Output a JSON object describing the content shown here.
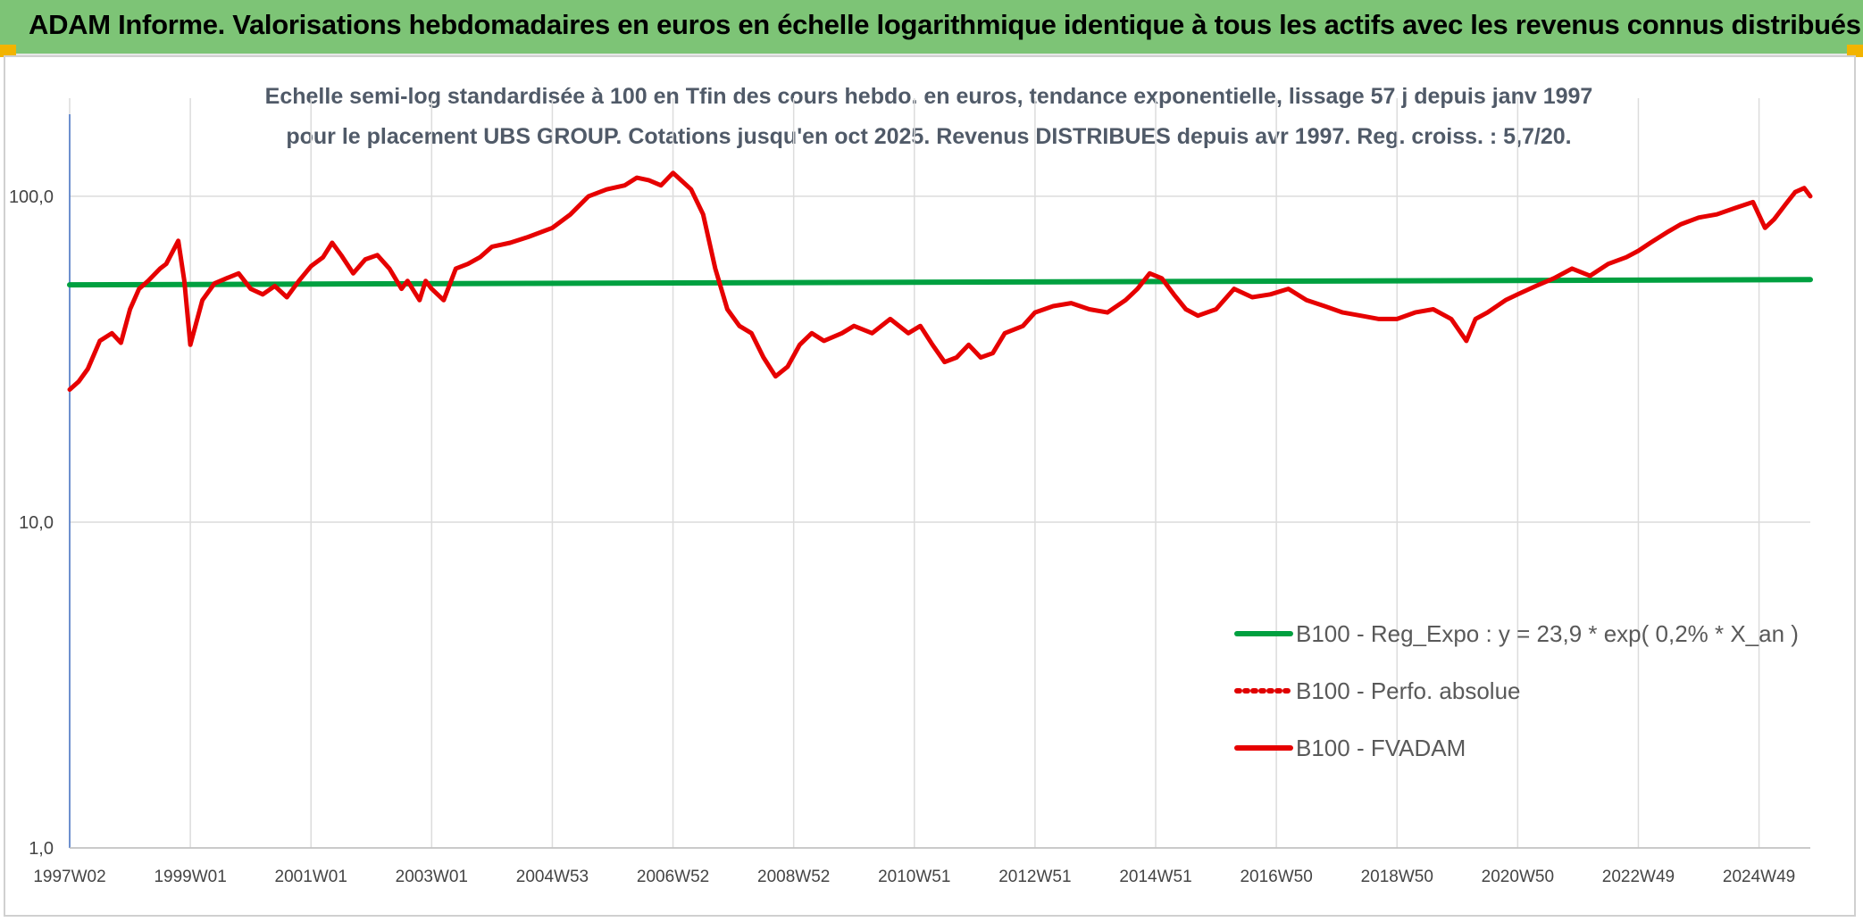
{
  "banner": {
    "title": "ADAM Informe. Valorisations hebdomadaires en euros en échelle logarithmique identique à tous les actifs avec les revenus connus distribués",
    "background_color": "#7dc476",
    "accent_color": "#f2b400"
  },
  "chart_data": {
    "type": "line",
    "title": "Echelle semi-log standardisée à 100 en Tfin des cours hebdo. en euros, tendance exponentielle, lissage 57 j depuis janv 1997 pour le placement UBS GROUP. Cotations jusqu'en oct 2025. Revenus DISTRIBUES depuis avr 1997. Reg. croiss. : 5,7/20.",
    "xlabel": "",
    "ylabel": "",
    "y_scale": "log",
    "ylim": [
      1,
      200
    ],
    "grid": true,
    "legend_position": "bottom-right",
    "y_ticks": [
      {
        "value": 1,
        "label": "1,0"
      },
      {
        "value": 10,
        "label": "10,0"
      },
      {
        "value": 100,
        "label": "100,0"
      }
    ],
    "x_range": [
      1997.0,
      2025.85
    ],
    "x_ticks": [
      {
        "value": 1997.0,
        "label": "1997W02"
      },
      {
        "value": 1999.0,
        "label": "1999W01"
      },
      {
        "value": 2001.0,
        "label": "2001W01"
      },
      {
        "value": 2003.0,
        "label": "2003W01"
      },
      {
        "value": 2005.0,
        "label": "2004W53"
      },
      {
        "value": 2007.0,
        "label": "2006W52"
      },
      {
        "value": 2009.0,
        "label": "2008W52"
      },
      {
        "value": 2011.0,
        "label": "2010W51"
      },
      {
        "value": 2013.0,
        "label": "2012W51"
      },
      {
        "value": 2015.0,
        "label": "2014W51"
      },
      {
        "value": 2017.0,
        "label": "2016W50"
      },
      {
        "value": 2019.0,
        "label": "2018W50"
      },
      {
        "value": 2021.0,
        "label": "2020W50"
      },
      {
        "value": 2023.0,
        "label": "2022W49"
      },
      {
        "value": 2025.0,
        "label": "2024W49"
      }
    ],
    "series": [
      {
        "name": "B100 - Reg_Expo : y = 23,9 * exp( 0,2% *  X_an )",
        "color": "#00a040",
        "style": "solid",
        "x": [
          1997.0,
          2025.85
        ],
        "y": [
          53.5,
          55.5
        ]
      },
      {
        "name": "B100 - Perfo. absolue",
        "color": "#e00000",
        "style": "dotted",
        "x": [],
        "y": []
      },
      {
        "name": "B100 - FVADAM",
        "color": "#e60000",
        "style": "solid",
        "x": [
          1997.0,
          1997.15,
          1997.3,
          1997.5,
          1997.7,
          1997.85,
          1998.0,
          1998.15,
          1998.3,
          1998.5,
          1998.6,
          1998.8,
          1998.9,
          1999.0,
          1999.2,
          1999.4,
          1999.6,
          1999.8,
          2000.0,
          2000.2,
          2000.4,
          2000.6,
          2000.8,
          2001.0,
          2001.2,
          2001.35,
          2001.5,
          2001.7,
          2001.9,
          2002.1,
          2002.3,
          2002.5,
          2002.6,
          2002.8,
          2002.9,
          2003.0,
          2003.2,
          2003.4,
          2003.6,
          2003.8,
          2004.0,
          2004.3,
          2004.6,
          2005.0,
          2005.3,
          2005.6,
          2005.9,
          2006.2,
          2006.4,
          2006.6,
          2006.8,
          2007.0,
          2007.3,
          2007.5,
          2007.7,
          2007.9,
          2008.1,
          2008.3,
          2008.5,
          2008.7,
          2008.9,
          2009.1,
          2009.3,
          2009.5,
          2009.8,
          2010.0,
          2010.3,
          2010.6,
          2010.9,
          2011.1,
          2011.3,
          2011.5,
          2011.7,
          2011.9,
          2012.1,
          2012.3,
          2012.5,
          2012.8,
          2013.0,
          2013.3,
          2013.6,
          2013.9,
          2014.2,
          2014.5,
          2014.7,
          2014.9,
          2015.1,
          2015.3,
          2015.5,
          2015.7,
          2016.0,
          2016.3,
          2016.6,
          2016.9,
          2017.2,
          2017.5,
          2017.8,
          2018.1,
          2018.4,
          2018.7,
          2019.0,
          2019.3,
          2019.6,
          2019.9,
          2020.15,
          2020.3,
          2020.5,
          2020.8,
          2021.0,
          2021.3,
          2021.6,
          2021.9,
          2022.2,
          2022.5,
          2022.8,
          2023.0,
          2023.2,
          2023.5,
          2023.7,
          2024.0,
          2024.3,
          2024.6,
          2024.9,
          2025.1,
          2025.25,
          2025.45,
          2025.6,
          2025.75,
          2025.85
        ],
        "y": [
          25.5,
          27,
          29.5,
          36,
          38,
          35.5,
          45,
          52,
          55,
          60,
          62,
          73,
          55,
          35,
          48,
          54,
          56,
          58,
          52,
          50,
          53,
          49,
          55,
          61,
          65,
          72,
          66,
          58,
          64,
          66,
          60,
          52,
          55,
          48,
          55,
          52,
          48,
          60,
          62,
          65,
          70,
          72,
          75,
          80,
          88,
          100,
          105,
          108,
          114,
          112,
          108,
          118,
          105,
          88,
          60,
          45,
          40,
          38,
          32,
          28,
          30,
          35,
          38,
          36,
          38,
          40,
          38,
          42,
          38,
          40,
          35,
          31,
          32,
          35,
          32,
          33,
          38,
          40,
          44,
          46,
          47,
          45,
          44,
          48,
          52,
          58,
          56,
          50,
          45,
          43,
          45,
          52,
          49,
          50,
          52,
          48,
          46,
          44,
          43,
          42,
          42,
          44,
          45,
          42,
          36,
          42,
          44,
          48,
          50,
          53,
          56,
          60,
          57,
          62,
          65,
          68,
          72,
          78,
          82,
          86,
          88,
          92,
          96,
          80,
          85,
          95,
          103,
          106,
          100
        ]
      }
    ]
  }
}
